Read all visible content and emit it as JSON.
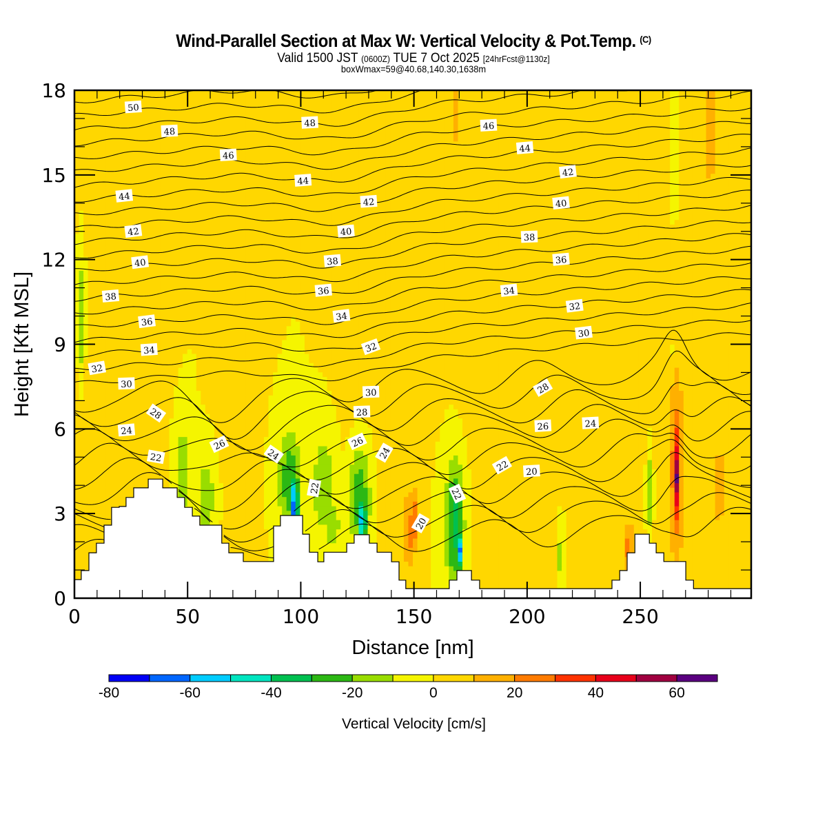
{
  "header": {
    "title": "Wind-Parallel Section at Max W: Vertical Velocity & Pot.Temp.",
    "copyright": "(C)",
    "valid_prefix": "Valid 1500 JST",
    "valid_utc": "(0600Z)",
    "valid_date": "TUE 7 Oct 2025",
    "forecast": "[24hrFcst@1130z]",
    "boxwmax": "boxWmax=59@40.68,140.30,1638m"
  },
  "chart_data": {
    "type": "heatmap",
    "title": "Wind-Parallel Section at Max W: Vertical Velocity & Pot.Temp.",
    "xlabel": "Distance [nm]",
    "ylabel": "Height [Kft MSL]",
    "xlim": [
      0,
      299
    ],
    "ylim": [
      0,
      18
    ],
    "xticks": [
      0,
      50,
      100,
      150,
      200,
      250
    ],
    "yticks": [
      0,
      3,
      6,
      9,
      12,
      15,
      18
    ],
    "x_minor_step": 10,
    "y_minor_step": 1,
    "colorbar": {
      "label": "Vertical Velocity [cm/s]",
      "boundaries": [
        -80,
        -70,
        -60,
        -50,
        -40,
        -30,
        -20,
        -10,
        0,
        10,
        20,
        30,
        40,
        50,
        60,
        70
      ],
      "tick_labels": [
        "-80",
        "-60",
        "-40",
        "-20",
        "0",
        "20",
        "40",
        "60"
      ],
      "tick_values": [
        -80,
        -60,
        -40,
        -20,
        0,
        20,
        40,
        60
      ],
      "colors": [
        "#0000f5",
        "#0066ff",
        "#00ccff",
        "#00e5c0",
        "#00c050",
        "#2cb814",
        "#99dd00",
        "#f5f500",
        "#ffd700",
        "#ffb000",
        "#ff7b00",
        "#ff3300",
        "#e8001a",
        "#a00040",
        "#5a0080"
      ],
      "placement": "bottom"
    },
    "background_w": 0,
    "w_features": [
      {
        "x": 14,
        "y": 15.2,
        "sx": 8,
        "sy": 3.5,
        "w": 5
      },
      {
        "x": 35,
        "y": 12,
        "sx": 6,
        "sy": 8,
        "w": 5
      },
      {
        "x": 70,
        "y": 13,
        "sx": 6,
        "sy": 9,
        "w": 5
      },
      {
        "x": 125,
        "y": 15,
        "sx": 6,
        "sy": 6,
        "w": 5
      },
      {
        "x": 140,
        "y": 12,
        "sx": 5,
        "sy": 9,
        "w": 5
      },
      {
        "x": 175,
        "y": 15,
        "sx": 7,
        "sy": 6,
        "w": 5
      },
      {
        "x": 205,
        "y": 12,
        "sx": 6,
        "sy": 10,
        "w": 5
      },
      {
        "x": 225,
        "y": 14,
        "sx": 7,
        "sy": 8,
        "w": 5
      },
      {
        "x": 250,
        "y": 12,
        "sx": 8,
        "sy": 9,
        "w": 5
      },
      {
        "x": 287,
        "y": 14,
        "sx": 6,
        "sy": 8,
        "w": 5
      },
      {
        "x": 168,
        "y": 17.5,
        "sx": 1.5,
        "sy": 1.5,
        "w": 15
      },
      {
        "x": 281,
        "y": 16.5,
        "sx": 2,
        "sy": 2,
        "w": 15
      },
      {
        "x": 5,
        "y": 4,
        "sx": 6,
        "sy": 4,
        "w": 5
      },
      {
        "x": 27,
        "y": 4,
        "sx": 5,
        "sy": 3,
        "w": 5
      },
      {
        "x": 3,
        "y": 10,
        "sx": 1.2,
        "sy": 1.8,
        "w": -15
      },
      {
        "x": 265,
        "y": 16,
        "sx": 0.6,
        "sy": 1.5,
        "w": -15
      },
      {
        "x": 265,
        "y": 8.7,
        "sx": 0.6,
        "sy": 0.4,
        "w": -15
      },
      {
        "x": 48,
        "y": 4.5,
        "sx": 3,
        "sy": 1.5,
        "w": -15
      },
      {
        "x": 58,
        "y": 3.6,
        "sx": 3.5,
        "sy": 1.2,
        "w": -15
      },
      {
        "x": 95,
        "y": 4.2,
        "sx": 3.5,
        "sy": 1.2,
        "w": -28
      },
      {
        "x": 97,
        "y": 3.4,
        "sx": 1.6,
        "sy": 0.8,
        "w": -60
      },
      {
        "x": 97,
        "y": 3.2,
        "sx": 0.8,
        "sy": 0.4,
        "w": -75
      },
      {
        "x": 110,
        "y": 4.0,
        "sx": 3.5,
        "sy": 1.2,
        "w": -20
      },
      {
        "x": 114,
        "y": 2.6,
        "sx": 3,
        "sy": 0.8,
        "w": -15
      },
      {
        "x": 126,
        "y": 3.5,
        "sx": 3.2,
        "sy": 1.2,
        "w": -30
      },
      {
        "x": 127,
        "y": 2.8,
        "sx": 1.6,
        "sy": 0.6,
        "w": -55
      },
      {
        "x": 148,
        "y": 2.4,
        "sx": 2,
        "sy": 1.0,
        "w": 25
      },
      {
        "x": 150,
        "y": 2.8,
        "sx": 1,
        "sy": 0.8,
        "w": 32
      },
      {
        "x": 168,
        "y": 2.6,
        "sx": 2.8,
        "sy": 1.6,
        "w": -35
      },
      {
        "x": 170,
        "y": 1.7,
        "sx": 1.2,
        "sy": 0.5,
        "w": -65
      },
      {
        "x": 170,
        "y": 1.6,
        "sx": 0.6,
        "sy": 0.3,
        "w": -75
      },
      {
        "x": 215,
        "y": 1.5,
        "sx": 1.2,
        "sy": 0.8,
        "w": -15
      },
      {
        "x": 245,
        "y": 1.8,
        "sx": 1.6,
        "sy": 0.7,
        "w": 25
      },
      {
        "x": 254,
        "y": 3.8,
        "sx": 1.2,
        "sy": 1.3,
        "w": -15
      },
      {
        "x": 266,
        "y": 4.6,
        "sx": 2.2,
        "sy": 2.4,
        "w": 30
      },
      {
        "x": 266,
        "y": 4.4,
        "sx": 1.2,
        "sy": 1.6,
        "w": 50
      },
      {
        "x": 266,
        "y": 4.3,
        "sx": 0.7,
        "sy": 0.9,
        "w": 62
      },
      {
        "x": 285,
        "y": 4,
        "sx": 2,
        "sy": 1.5,
        "w": 15
      },
      {
        "x": 230,
        "y": 3,
        "sx": 5,
        "sy": 3,
        "w": 5
      },
      {
        "x": 195,
        "y": 2.5,
        "sx": 5,
        "sy": 3,
        "w": 5
      }
    ],
    "theta_contours": {
      "units": "K",
      "interval": 1,
      "labeled_levels": [
        20,
        22,
        24,
        26,
        28,
        30,
        32,
        34,
        36,
        38,
        40,
        42,
        44,
        46,
        48,
        50
      ],
      "labels": [
        {
          "text": "50",
          "x": 26,
          "y": 17.4,
          "angle": -4
        },
        {
          "text": "48",
          "x": 42,
          "y": 16.55,
          "angle": -3
        },
        {
          "text": "48",
          "x": 104,
          "y": 16.85,
          "angle": -3
        },
        {
          "text": "46",
          "x": 68,
          "y": 15.7,
          "angle": -3
        },
        {
          "text": "46",
          "x": 183,
          "y": 16.75,
          "angle": -3
        },
        {
          "text": "44",
          "x": 22,
          "y": 14.25,
          "angle": -6
        },
        {
          "text": "44",
          "x": 101,
          "y": 14.8,
          "angle": -4
        },
        {
          "text": "44",
          "x": 199,
          "y": 15.95,
          "angle": -5
        },
        {
          "text": "42",
          "x": 26,
          "y": 13.0,
          "angle": -7
        },
        {
          "text": "42",
          "x": 130,
          "y": 14.05,
          "angle": -4
        },
        {
          "text": "42",
          "x": 218,
          "y": 15.1,
          "angle": -7
        },
        {
          "text": "40",
          "x": 29,
          "y": 11.9,
          "angle": -7
        },
        {
          "text": "40",
          "x": 120,
          "y": 13.0,
          "angle": -5
        },
        {
          "text": "40",
          "x": 215,
          "y": 14.0,
          "angle": -6
        },
        {
          "text": "38",
          "x": 16,
          "y": 10.7,
          "angle": -5
        },
        {
          "text": "38",
          "x": 114,
          "y": 11.95,
          "angle": -5
        },
        {
          "text": "38",
          "x": 201,
          "y": 12.8,
          "angle": -2
        },
        {
          "text": "36",
          "x": 32,
          "y": 9.8,
          "angle": -7
        },
        {
          "text": "36",
          "x": 110,
          "y": 10.9,
          "angle": -5
        },
        {
          "text": "36",
          "x": 215,
          "y": 12.0,
          "angle": -5
        },
        {
          "text": "34",
          "x": 33,
          "y": 8.8,
          "angle": -4
        },
        {
          "text": "34",
          "x": 118,
          "y": 10.0,
          "angle": -7
        },
        {
          "text": "34",
          "x": 192,
          "y": 10.9,
          "angle": -6
        },
        {
          "text": "32",
          "x": 10,
          "y": 8.15,
          "angle": -10
        },
        {
          "text": "32",
          "x": 131,
          "y": 8.9,
          "angle": -20
        },
        {
          "text": "32",
          "x": 221,
          "y": 10.35,
          "angle": -7
        },
        {
          "text": "30",
          "x": 23,
          "y": 7.6,
          "angle": -2
        },
        {
          "text": "30",
          "x": 131,
          "y": 7.3,
          "angle": -2
        },
        {
          "text": "30",
          "x": 225,
          "y": 9.4,
          "angle": -7
        },
        {
          "text": "28",
          "x": 36,
          "y": 6.55,
          "angle": 35
        },
        {
          "text": "28",
          "x": 127,
          "y": 6.6,
          "angle": -2
        },
        {
          "text": "28",
          "x": 207,
          "y": 7.45,
          "angle": -30
        },
        {
          "text": "26",
          "x": 64,
          "y": 5.45,
          "angle": -25
        },
        {
          "text": "26",
          "x": 125,
          "y": 5.55,
          "angle": -25
        },
        {
          "text": "26",
          "x": 207,
          "y": 6.1,
          "angle": -3
        },
        {
          "text": "24",
          "x": 23,
          "y": 5.95,
          "angle": -5
        },
        {
          "text": "24",
          "x": 88,
          "y": 5.1,
          "angle": 35
        },
        {
          "text": "24",
          "x": 137,
          "y": 5.15,
          "angle": -60
        },
        {
          "text": "24",
          "x": 228,
          "y": 6.2,
          "angle": -3
        },
        {
          "text": "22",
          "x": 36,
          "y": 5.0,
          "angle": 10
        },
        {
          "text": "22",
          "x": 106,
          "y": 3.9,
          "angle": -80
        },
        {
          "text": "22",
          "x": 169,
          "y": 3.7,
          "angle": 65
        },
        {
          "text": "22",
          "x": 189,
          "y": 4.7,
          "angle": -30
        },
        {
          "text": "20",
          "x": 153,
          "y": 2.65,
          "angle": -60
        },
        {
          "text": "20",
          "x": 202,
          "y": 4.5,
          "angle": -3
        }
      ]
    },
    "terrain_kft": [
      [
        0,
        0.66
      ],
      [
        3.0,
        0.66
      ],
      [
        3.0,
        0.98
      ],
      [
        6.4,
        0.98
      ],
      [
        6.4,
        1.61
      ],
      [
        9.7,
        1.61
      ],
      [
        9.7,
        1.95
      ],
      [
        13.1,
        1.95
      ],
      [
        13.1,
        2.59
      ],
      [
        16.4,
        2.59
      ],
      [
        16.4,
        3.22
      ],
      [
        19.8,
        3.22
      ],
      [
        19.8,
        3.25
      ],
      [
        22.8,
        3.25
      ],
      [
        22.8,
        3.57
      ],
      [
        26.2,
        3.57
      ],
      [
        26.2,
        3.91
      ],
      [
        32.6,
        3.91
      ],
      [
        32.6,
        4.22
      ],
      [
        39.0,
        4.22
      ],
      [
        39.0,
        3.91
      ],
      [
        45.4,
        3.91
      ],
      [
        45.4,
        3.57
      ],
      [
        48.7,
        3.57
      ],
      [
        48.7,
        3.22
      ],
      [
        52.1,
        3.22
      ],
      [
        52.1,
        2.91
      ],
      [
        55.4,
        2.91
      ],
      [
        55.4,
        2.59
      ],
      [
        58.8,
        2.59
      ],
      [
        58.8,
        2.59
      ],
      [
        65.1,
        2.59
      ],
      [
        65.1,
        1.95
      ],
      [
        68.2,
        1.95
      ],
      [
        68.2,
        1.61
      ],
      [
        74.6,
        1.61
      ],
      [
        74.6,
        1.3
      ],
      [
        88.0,
        1.3
      ],
      [
        88.0,
        2.56
      ],
      [
        91.0,
        2.56
      ],
      [
        91.0,
        2.93
      ],
      [
        100.8,
        2.93
      ],
      [
        100.8,
        2.27
      ],
      [
        103.8,
        2.27
      ],
      [
        103.8,
        1.63
      ],
      [
        107.5,
        1.63
      ],
      [
        107.5,
        1.29
      ],
      [
        110.2,
        1.29
      ],
      [
        110.2,
        1.63
      ],
      [
        120.3,
        1.63
      ],
      [
        120.3,
        1.95
      ],
      [
        123.6,
        1.95
      ],
      [
        123.6,
        2.25
      ],
      [
        130.3,
        2.25
      ],
      [
        130.3,
        1.95
      ],
      [
        133.7,
        1.95
      ],
      [
        133.7,
        1.63
      ],
      [
        140.1,
        1.63
      ],
      [
        140.1,
        1.29
      ],
      [
        143.4,
        1.29
      ],
      [
        143.4,
        0.64
      ],
      [
        146.4,
        0.64
      ],
      [
        146.4,
        0.34
      ],
      [
        165.6,
        0.34
      ],
      [
        165.6,
        0.64
      ],
      [
        169.0,
        0.64
      ],
      [
        169.0,
        0.98
      ],
      [
        175.4,
        0.98
      ],
      [
        175.4,
        0.64
      ],
      [
        179.0,
        0.64
      ],
      [
        179.0,
        0.34
      ],
      [
        237.5,
        0.34
      ],
      [
        237.5,
        0.64
      ],
      [
        240.9,
        0.64
      ],
      [
        240.9,
        0.98
      ],
      [
        244.2,
        0.98
      ],
      [
        244.2,
        1.61
      ],
      [
        247.6,
        1.61
      ],
      [
        247.6,
        2.27
      ],
      [
        254.0,
        2.27
      ],
      [
        254.0,
        1.95
      ],
      [
        257.0,
        1.95
      ],
      [
        257.0,
        1.61
      ],
      [
        260.4,
        1.61
      ],
      [
        260.4,
        1.3
      ],
      [
        270.1,
        1.3
      ],
      [
        270.1,
        0.64
      ],
      [
        273.5,
        0.64
      ],
      [
        273.5,
        0.34
      ],
      [
        299,
        0.34
      ]
    ]
  }
}
